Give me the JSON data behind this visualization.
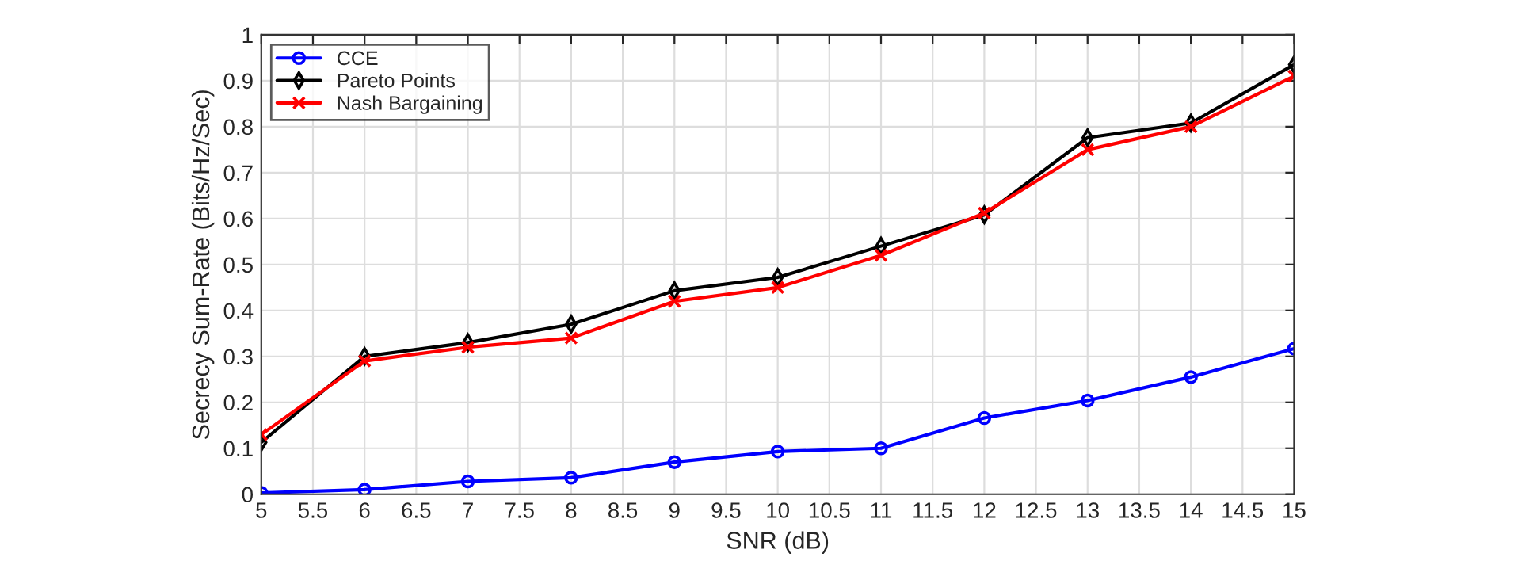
{
  "chart_data": {
    "type": "line",
    "xlabel": "SNR (dB)",
    "ylabel": "Secrecy Sum-Rate (Bits/Hz/Sec)",
    "x": [
      5,
      6,
      7,
      8,
      9,
      10,
      11,
      12,
      13,
      14,
      15
    ],
    "series": [
      {
        "name": "CCE",
        "color": "#0000ff",
        "marker": "circle",
        "values": [
          0.003,
          0.01,
          0.028,
          0.036,
          0.07,
          0.093,
          0.1,
          0.166,
          0.204,
          0.255,
          0.317
        ]
      },
      {
        "name": "Pareto Points",
        "color": "#000000",
        "marker": "diamond",
        "values": [
          0.113,
          0.3,
          0.33,
          0.37,
          0.443,
          0.472,
          0.54,
          0.608,
          0.776,
          0.808,
          0.935
        ]
      },
      {
        "name": "Nash Bargaining",
        "color": "#ff0000",
        "marker": "cross",
        "values": [
          0.13,
          0.29,
          0.32,
          0.34,
          0.42,
          0.45,
          0.52,
          0.612,
          0.75,
          0.8,
          0.91
        ]
      }
    ],
    "xlim": [
      5,
      15
    ],
    "xticks": [
      5,
      5.5,
      6,
      6.5,
      7,
      7.5,
      8,
      8.5,
      9,
      9.5,
      10,
      10.5,
      11,
      11.5,
      12,
      12.5,
      13,
      13.5,
      14,
      14.5,
      15
    ],
    "ylim": [
      0,
      1
    ],
    "yticks": [
      0,
      0.1,
      0.2,
      0.3,
      0.4,
      0.5,
      0.6,
      0.7,
      0.8,
      0.9,
      1
    ],
    "grid": true,
    "legend": "top left",
    "line_style": "solid"
  }
}
